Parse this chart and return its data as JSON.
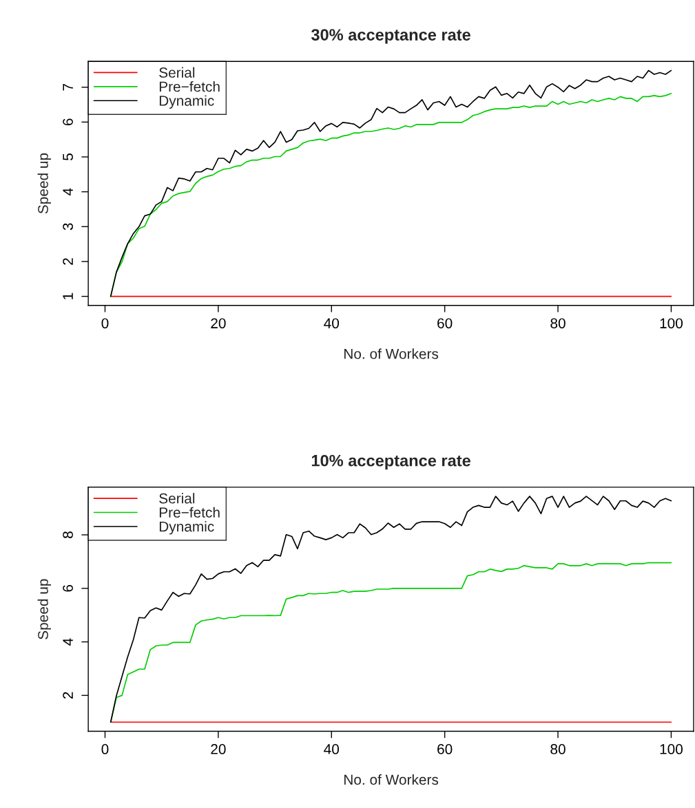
{
  "chart_data": [
    {
      "type": "line",
      "title": "30% acceptance rate",
      "xlabel": "No. of Workers",
      "ylabel": "Speed up",
      "xlim": [
        -2.96,
        103.96
      ],
      "ylim": [
        0.74,
        7.74
      ],
      "xticks": [
        0,
        20,
        40,
        60,
        80,
        100
      ],
      "yticks": [
        1,
        2,
        3,
        4,
        5,
        6,
        7
      ],
      "grid": false,
      "legend": "top left",
      "marker": "none",
      "line_style": "solid",
      "x": [
        1,
        2,
        3,
        4,
        5,
        6,
        7,
        8,
        9,
        10,
        11,
        12,
        13,
        14,
        15,
        16,
        17,
        18,
        19,
        20,
        21,
        22,
        23,
        24,
        25,
        26,
        27,
        28,
        29,
        30,
        31,
        32,
        33,
        34,
        35,
        36,
        37,
        38,
        39,
        40,
        41,
        42,
        43,
        44,
        45,
        46,
        47,
        48,
        49,
        50,
        51,
        52,
        53,
        54,
        55,
        56,
        57,
        58,
        59,
        60,
        61,
        62,
        63,
        64,
        65,
        66,
        67,
        68,
        69,
        70,
        71,
        72,
        73,
        74,
        75,
        76,
        77,
        78,
        79,
        80,
        81,
        82,
        83,
        84,
        85,
        86,
        87,
        88,
        89,
        90,
        91,
        92,
        93,
        94,
        95,
        96,
        97,
        98,
        99,
        100
      ],
      "series": [
        {
          "name": "Serial",
          "color": "#ff0000",
          "values": [
            1,
            1,
            1,
            1,
            1,
            1,
            1,
            1,
            1,
            1,
            1,
            1,
            1,
            1,
            1,
            1,
            1,
            1,
            1,
            1,
            1,
            1,
            1,
            1,
            1,
            1,
            1,
            1,
            1,
            1,
            1,
            1,
            1,
            1,
            1,
            1,
            1,
            1,
            1,
            1,
            1,
            1,
            1,
            1,
            1,
            1,
            1,
            1,
            1,
            1,
            1,
            1,
            1,
            1,
            1,
            1,
            1,
            1,
            1,
            1,
            1,
            1,
            1,
            1,
            1,
            1,
            1,
            1,
            1,
            1,
            1,
            1,
            1,
            1,
            1,
            1,
            1,
            1,
            1,
            1,
            1,
            1,
            1,
            1,
            1,
            1,
            1,
            1,
            1,
            1,
            1,
            1,
            1,
            1,
            1,
            1,
            1,
            1,
            1,
            1
          ]
        },
        {
          "name": "Pre−fetch",
          "color": "#00cd00",
          "values": [
            1.0,
            1.69,
            1.99,
            2.51,
            2.67,
            2.94,
            3.01,
            3.36,
            3.49,
            3.67,
            3.72,
            3.88,
            3.95,
            3.98,
            4.01,
            4.24,
            4.38,
            4.44,
            4.48,
            4.58,
            4.65,
            4.67,
            4.73,
            4.75,
            4.86,
            4.91,
            4.91,
            4.96,
            4.96,
            5.01,
            5.01,
            5.17,
            5.22,
            5.27,
            5.4,
            5.46,
            5.48,
            5.51,
            5.47,
            5.54,
            5.54,
            5.6,
            5.63,
            5.69,
            5.69,
            5.73,
            5.73,
            5.76,
            5.8,
            5.83,
            5.79,
            5.82,
            5.89,
            5.86,
            5.93,
            5.93,
            5.93,
            5.93,
            5.99,
            5.99,
            5.99,
            5.99,
            5.99,
            6.07,
            6.19,
            6.23,
            6.3,
            6.35,
            6.38,
            6.38,
            6.38,
            6.42,
            6.42,
            6.46,
            6.42,
            6.46,
            6.46,
            6.46,
            6.59,
            6.51,
            6.59,
            6.51,
            6.55,
            6.59,
            6.55,
            6.64,
            6.59,
            6.64,
            6.68,
            6.64,
            6.73,
            6.68,
            6.68,
            6.59,
            6.73,
            6.73,
            6.76,
            6.73,
            6.76,
            6.82
          ]
        },
        {
          "name": "Dynamic",
          "color": "#000000",
          "values": [
            1.0,
            1.69,
            2.12,
            2.51,
            2.8,
            3.0,
            3.31,
            3.36,
            3.62,
            3.72,
            4.12,
            4.03,
            4.39,
            4.37,
            4.31,
            4.57,
            4.57,
            4.67,
            4.63,
            4.96,
            4.96,
            4.83,
            5.19,
            5.06,
            5.22,
            5.17,
            5.25,
            5.47,
            5.27,
            5.42,
            5.73,
            5.42,
            5.5,
            5.75,
            5.77,
            5.82,
            5.99,
            5.73,
            5.89,
            5.96,
            5.86,
            5.99,
            5.97,
            5.94,
            5.83,
            5.97,
            6.07,
            6.39,
            6.27,
            6.43,
            6.38,
            6.27,
            6.27,
            6.38,
            6.48,
            6.64,
            6.35,
            6.55,
            6.59,
            6.48,
            6.73,
            6.43,
            6.51,
            6.43,
            6.59,
            6.73,
            6.68,
            6.91,
            7.01,
            6.77,
            6.82,
            6.69,
            6.86,
            6.82,
            7.06,
            6.82,
            6.69,
            7.01,
            7.1,
            7.0,
            6.87,
            7.05,
            6.96,
            7.06,
            7.21,
            7.16,
            7.16,
            7.26,
            7.31,
            7.21,
            7.26,
            7.21,
            7.16,
            7.31,
            7.26,
            7.48,
            7.37,
            7.42,
            7.37,
            7.48
          ]
        }
      ]
    },
    {
      "type": "line",
      "title": "10% acceptance rate",
      "xlabel": "No. of Workers",
      "ylabel": "Speed up",
      "xlim": [
        -2.96,
        103.96
      ],
      "ylim": [
        0.66,
        9.78
      ],
      "xticks": [
        0,
        20,
        40,
        60,
        80,
        100
      ],
      "yticks": [
        2,
        4,
        6,
        8
      ],
      "grid": false,
      "legend": "top left",
      "marker": "none",
      "line_style": "solid",
      "x": [
        1,
        2,
        3,
        4,
        5,
        6,
        7,
        8,
        9,
        10,
        11,
        12,
        13,
        14,
        15,
        16,
        17,
        18,
        19,
        20,
        21,
        22,
        23,
        24,
        25,
        26,
        27,
        28,
        29,
        30,
        31,
        32,
        33,
        34,
        35,
        36,
        37,
        38,
        39,
        40,
        41,
        42,
        43,
        44,
        45,
        46,
        47,
        48,
        49,
        50,
        51,
        52,
        53,
        54,
        55,
        56,
        57,
        58,
        59,
        60,
        61,
        62,
        63,
        64,
        65,
        66,
        67,
        68,
        69,
        70,
        71,
        72,
        73,
        74,
        75,
        76,
        77,
        78,
        79,
        80,
        81,
        82,
        83,
        84,
        85,
        86,
        87,
        88,
        89,
        90,
        91,
        92,
        93,
        94,
        95,
        96,
        97,
        98,
        99,
        100
      ],
      "series": [
        {
          "name": "Serial",
          "color": "#ff0000",
          "values": [
            1,
            1,
            1,
            1,
            1,
            1,
            1,
            1,
            1,
            1,
            1,
            1,
            1,
            1,
            1,
            1,
            1,
            1,
            1,
            1,
            1,
            1,
            1,
            1,
            1,
            1,
            1,
            1,
            1,
            1,
            1,
            1,
            1,
            1,
            1,
            1,
            1,
            1,
            1,
            1,
            1,
            1,
            1,
            1,
            1,
            1,
            1,
            1,
            1,
            1,
            1,
            1,
            1,
            1,
            1,
            1,
            1,
            1,
            1,
            1,
            1,
            1,
            1,
            1,
            1,
            1,
            1,
            1,
            1,
            1,
            1,
            1,
            1,
            1,
            1,
            1,
            1,
            1,
            1,
            1,
            1,
            1,
            1,
            1,
            1,
            1,
            1,
            1,
            1,
            1,
            1,
            1,
            1,
            1,
            1,
            1,
            1,
            1,
            1,
            1
          ]
        },
        {
          "name": "Pre−fetch",
          "color": "#00cd00",
          "values": [
            1.0,
            1.92,
            2.0,
            2.78,
            2.88,
            2.98,
            2.98,
            3.71,
            3.85,
            3.88,
            3.88,
            3.98,
            3.98,
            3.98,
            3.98,
            4.63,
            4.78,
            4.82,
            4.85,
            4.91,
            4.86,
            4.91,
            4.91,
            4.98,
            4.98,
            4.98,
            4.98,
            4.98,
            4.99,
            4.98,
            4.99,
            5.6,
            5.66,
            5.73,
            5.73,
            5.81,
            5.79,
            5.81,
            5.81,
            5.85,
            5.85,
            5.92,
            5.85,
            5.89,
            5.89,
            5.89,
            5.92,
            5.97,
            5.97,
            5.97,
            6.0,
            6.0,
            6.0,
            6.0,
            6.0,
            6.0,
            6.0,
            6.0,
            6.0,
            6.0,
            6.0,
            6.0,
            6.0,
            6.47,
            6.51,
            6.62,
            6.62,
            6.72,
            6.67,
            6.63,
            6.72,
            6.72,
            6.75,
            6.85,
            6.81,
            6.77,
            6.77,
            6.77,
            6.72,
            6.92,
            6.92,
            6.85,
            6.85,
            6.85,
            6.92,
            6.85,
            6.92,
            6.92,
            6.92,
            6.92,
            6.92,
            6.85,
            6.92,
            6.92,
            6.92,
            6.96,
            6.96,
            6.96,
            6.96,
            6.96
          ]
        },
        {
          "name": "Dynamic",
          "color": "#000000",
          "values": [
            1.0,
            1.98,
            2.71,
            3.44,
            4.08,
            4.91,
            4.89,
            5.17,
            5.27,
            5.19,
            5.53,
            5.85,
            5.7,
            5.81,
            5.79,
            6.13,
            6.54,
            6.34,
            6.37,
            6.54,
            6.62,
            6.62,
            6.73,
            6.56,
            6.85,
            6.96,
            6.81,
            7.05,
            7.05,
            7.26,
            7.21,
            8.01,
            7.94,
            7.48,
            8.08,
            8.14,
            7.95,
            7.89,
            7.82,
            7.89,
            8.01,
            7.89,
            8.08,
            8.08,
            8.41,
            8.26,
            8.01,
            8.08,
            8.22,
            8.44,
            8.28,
            8.41,
            8.21,
            8.21,
            8.43,
            8.49,
            8.49,
            8.49,
            8.49,
            8.42,
            8.28,
            8.49,
            8.35,
            8.86,
            9.03,
            9.1,
            9.03,
            9.03,
            9.44,
            9.19,
            9.12,
            9.26,
            8.88,
            9.19,
            9.44,
            9.19,
            8.79,
            9.36,
            9.44,
            9.03,
            9.44,
            9.03,
            9.19,
            9.26,
            9.44,
            9.28,
            9.12,
            9.44,
            9.27,
            8.95,
            9.27,
            9.27,
            9.1,
            9.03,
            9.26,
            9.19,
            9.03,
            9.27,
            9.36,
            9.27
          ]
        }
      ]
    }
  ]
}
